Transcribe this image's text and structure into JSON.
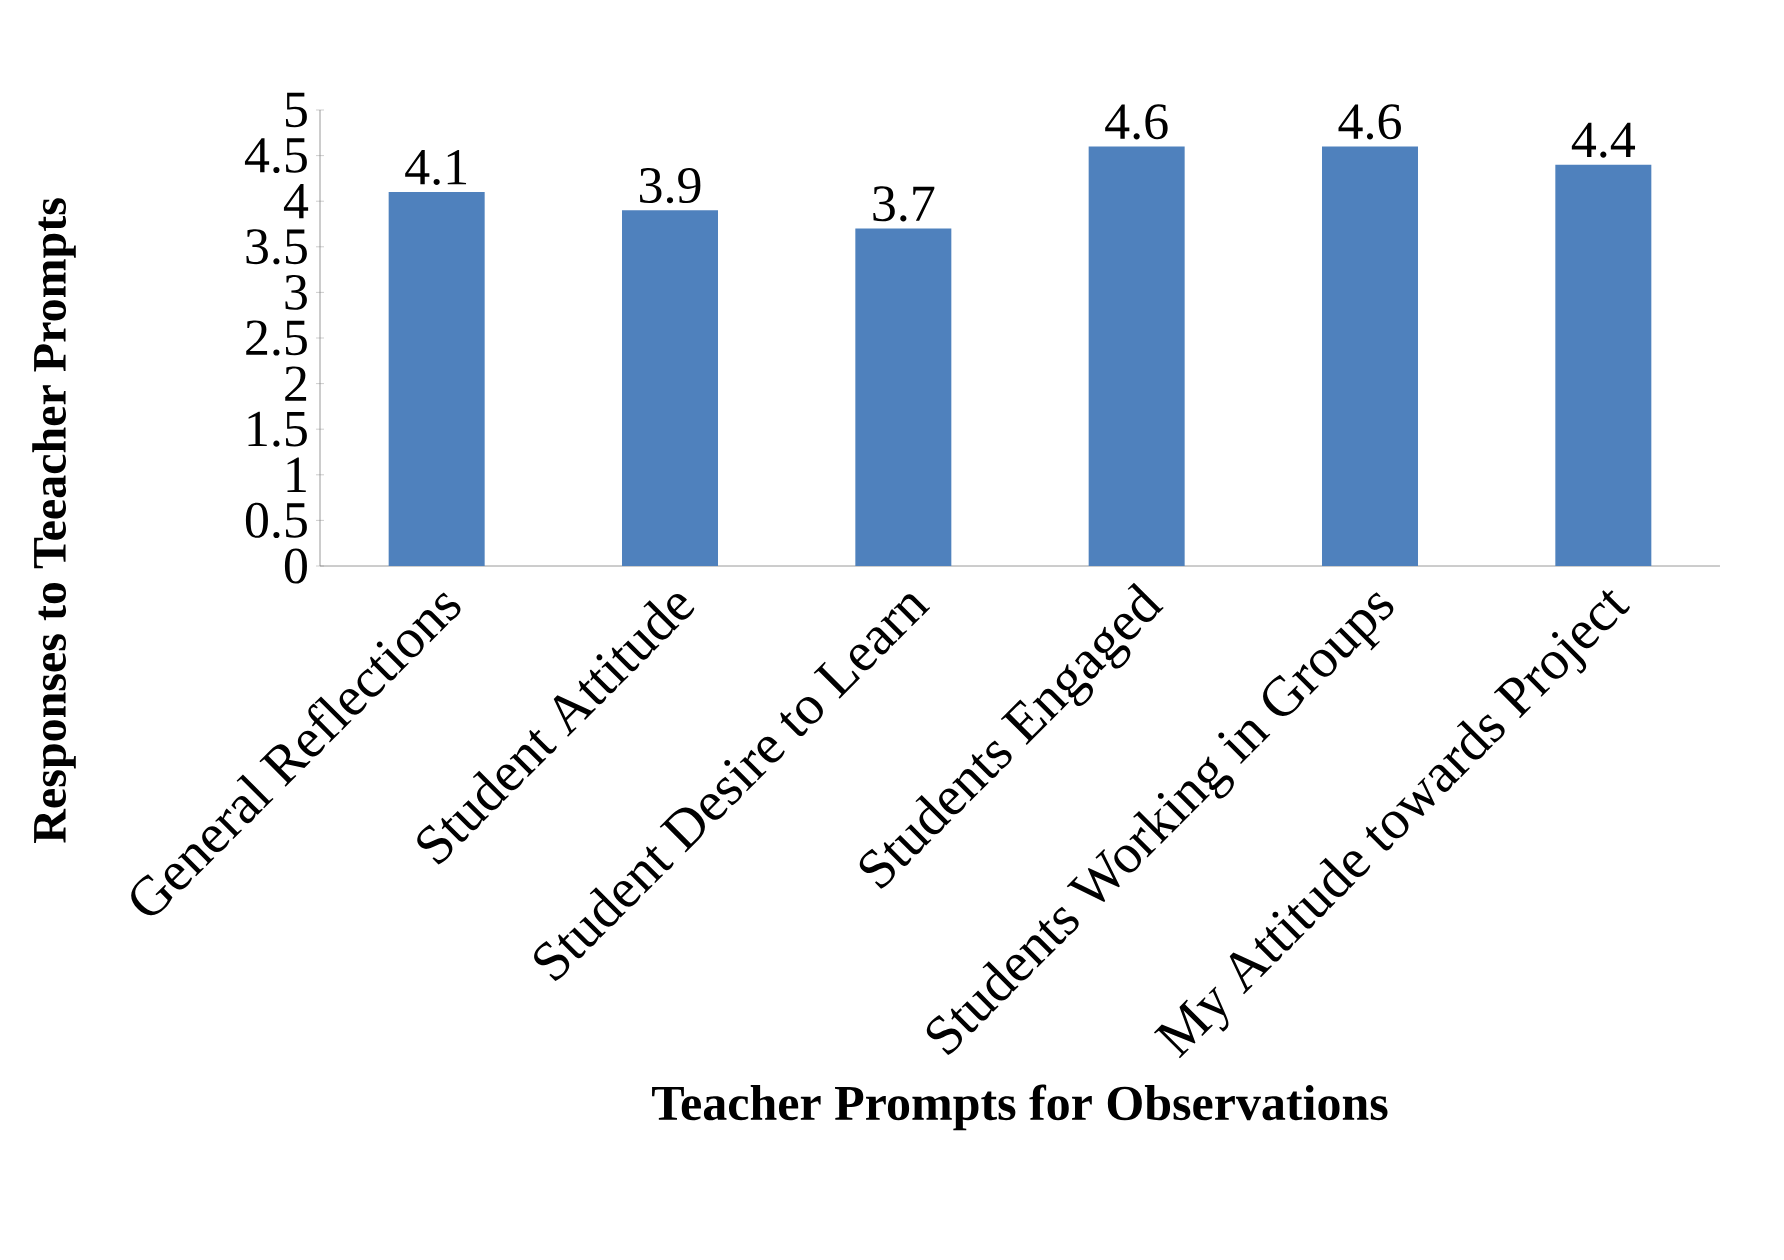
{
  "chart_data": {
    "type": "bar",
    "xlabel": "Teacher Prompts for Observations",
    "ylabel": "Responses to Teeacher Prompts",
    "categories": [
      "General Reflections",
      "Student Attitude",
      "Student Desire to Learn",
      "Students Engaged",
      "Students Working in Groups",
      "My Attitude towards Project"
    ],
    "values": [
      4.1,
      3.9,
      3.7,
      4.6,
      4.6,
      4.4
    ],
    "color": "#4f81bd",
    "ylim": [
      0,
      5
    ],
    "yticks": [
      0,
      0.5,
      1,
      1.5,
      2,
      2.5,
      3,
      3.5,
      4,
      4.5,
      5
    ],
    "data_labels": true
  }
}
